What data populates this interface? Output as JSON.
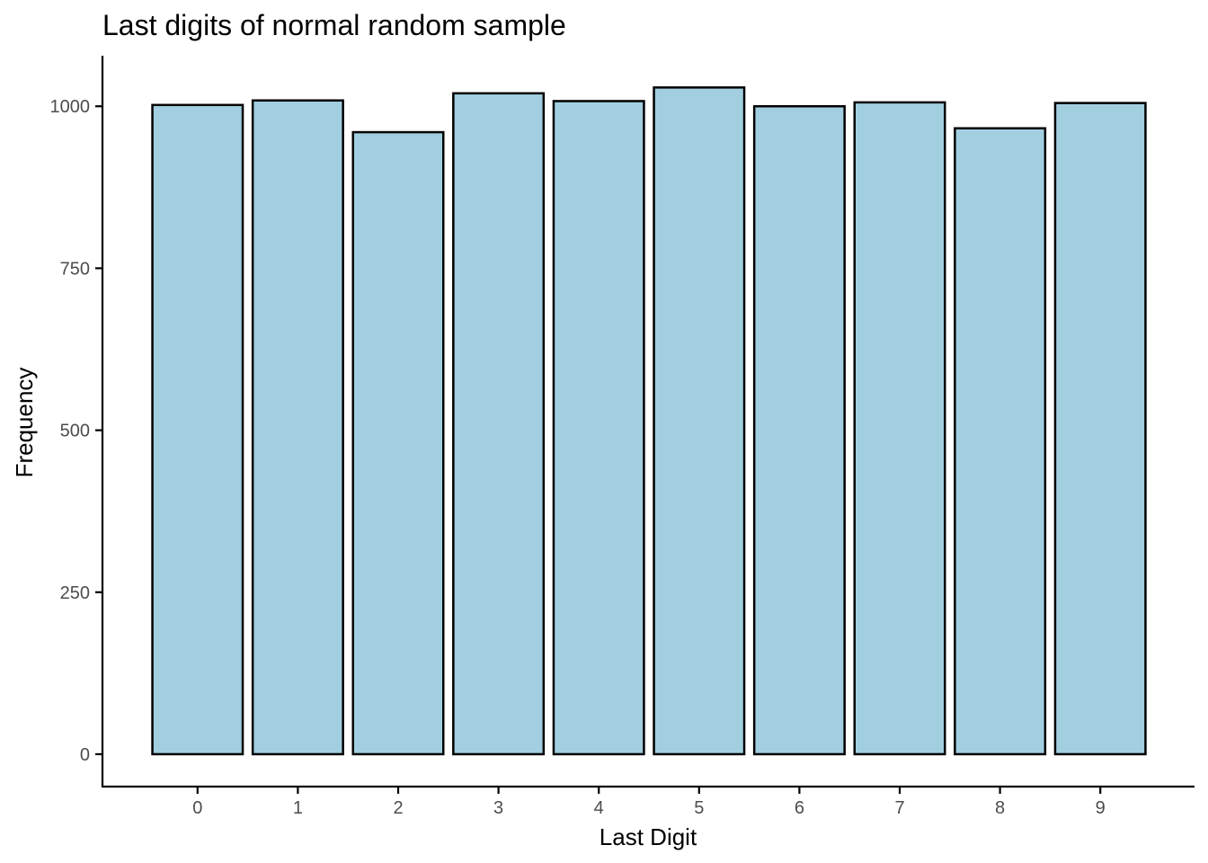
{
  "chart_data": {
    "type": "bar",
    "title": "Last digits of normal random sample",
    "xlabel": "Last Digit",
    "ylabel": "Frequency",
    "categories": [
      "0",
      "1",
      "2",
      "3",
      "4",
      "5",
      "6",
      "7",
      "8",
      "9"
    ],
    "values": [
      1002,
      1009,
      960,
      1020,
      1008,
      1029,
      1000,
      1006,
      966,
      1005
    ],
    "ylim": [
      -50,
      1078
    ],
    "yticks": [
      0,
      250,
      500,
      750,
      1000
    ],
    "ytick_labels": [
      "0",
      "250",
      "500",
      "750",
      "1000"
    ],
    "grid": false,
    "bar_fill": "#a2cfe0",
    "bar_outline": "#000000"
  }
}
